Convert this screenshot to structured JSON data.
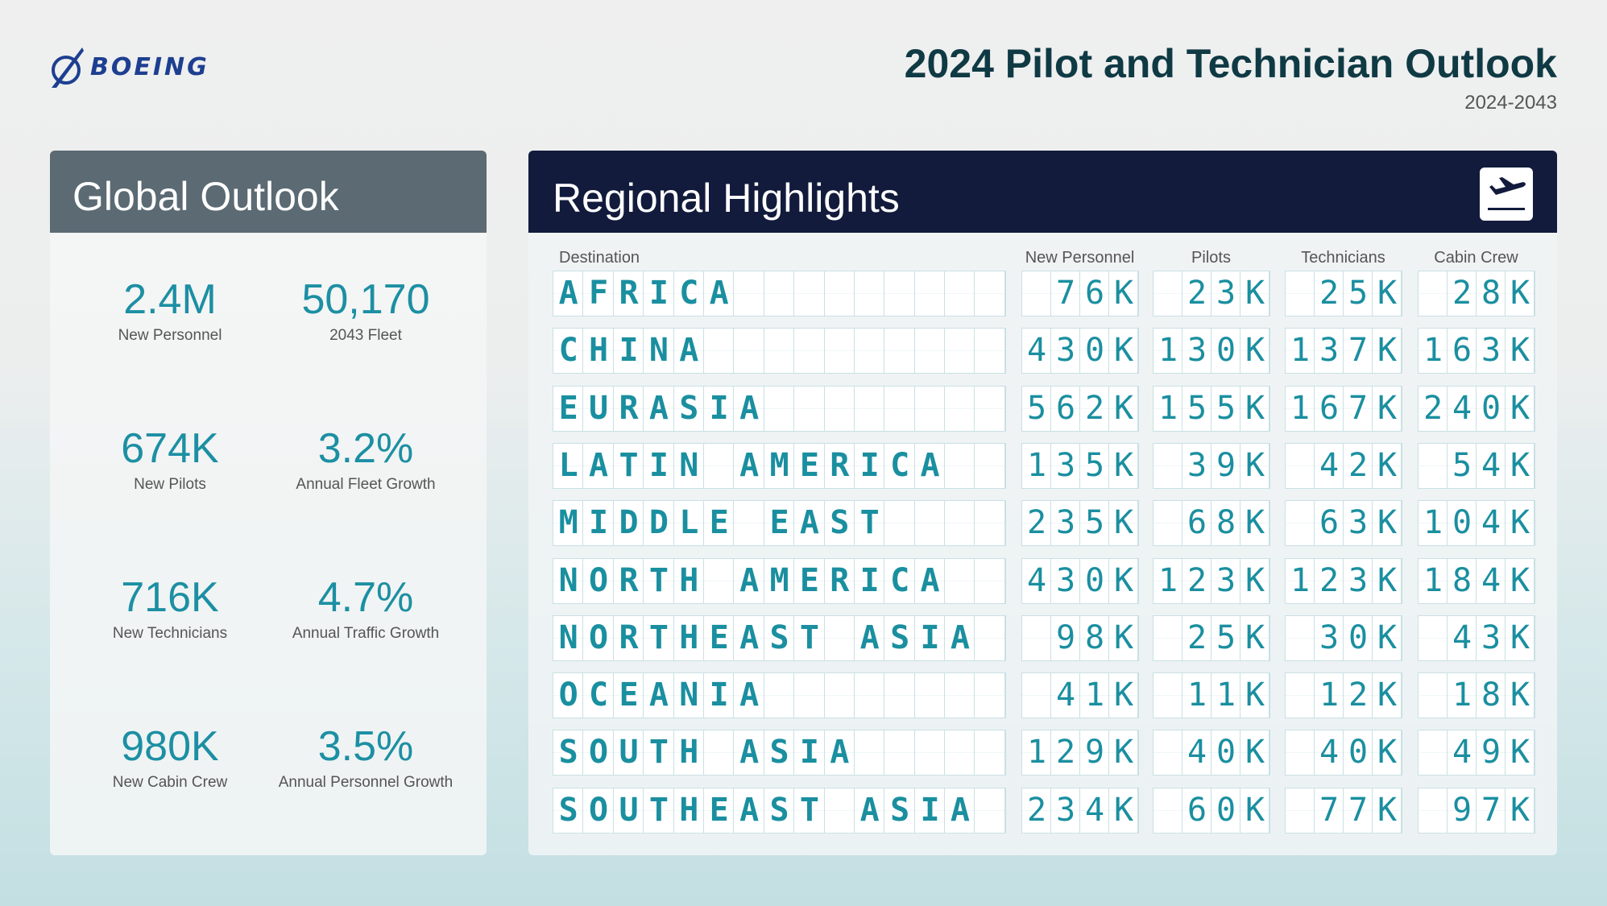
{
  "header": {
    "logo_text": "BOEING",
    "title": "2024 Pilot and Technician Outlook",
    "subtitle": "2024-2043"
  },
  "global": {
    "title": "Global Outlook",
    "stats": [
      {
        "value": "2.4M",
        "label": "New Personnel"
      },
      {
        "value": "50,170",
        "label": "2043 Fleet"
      },
      {
        "value": "674K",
        "label": "New Pilots"
      },
      {
        "value": "3.2%",
        "label": "Annual Fleet Growth"
      },
      {
        "value": "716K",
        "label": "New Technicians"
      },
      {
        "value": "4.7%",
        "label": "Annual Traffic Growth"
      },
      {
        "value": "980K",
        "label": "New Cabin Crew"
      },
      {
        "value": "3.5%",
        "label": "Annual Personnel Growth"
      }
    ]
  },
  "regional": {
    "title": "Regional Highlights",
    "icon": "plane-departure-icon",
    "columns": [
      "Destination",
      "New Personnel",
      "Pilots",
      "Technicians",
      "Cabin Crew"
    ],
    "rows": [
      {
        "destination": "AFRICA",
        "values": [
          "76K",
          "23K",
          "25K",
          "28K"
        ]
      },
      {
        "destination": "CHINA",
        "values": [
          "430K",
          "130K",
          "137K",
          "163K"
        ]
      },
      {
        "destination": "EURASIA",
        "values": [
          "562K",
          "155K",
          "167K",
          "240K"
        ]
      },
      {
        "destination": "LATIN AMERICA",
        "values": [
          "135K",
          "39K",
          "42K",
          "54K"
        ]
      },
      {
        "destination": "MIDDLE EAST",
        "values": [
          "235K",
          "68K",
          "63K",
          "104K"
        ]
      },
      {
        "destination": "NORTH AMERICA",
        "values": [
          "430K",
          "123K",
          "123K",
          "184K"
        ]
      },
      {
        "destination": "NORTHEAST ASIA",
        "values": [
          "98K",
          "25K",
          "30K",
          "43K"
        ]
      },
      {
        "destination": "OCEANIA",
        "values": [
          "41K",
          "11K",
          "12K",
          "18K"
        ]
      },
      {
        "destination": "SOUTH ASIA",
        "values": [
          "129K",
          "40K",
          "40K",
          "49K"
        ]
      },
      {
        "destination": "SOUTHEAST ASIA",
        "values": [
          "234K",
          "60K",
          "77K",
          "97K"
        ]
      }
    ]
  },
  "colors": {
    "accent": "#1a8fa0",
    "navy": "#121b3c",
    "slate": "#5b6a73",
    "brand": "#1d3f91"
  }
}
